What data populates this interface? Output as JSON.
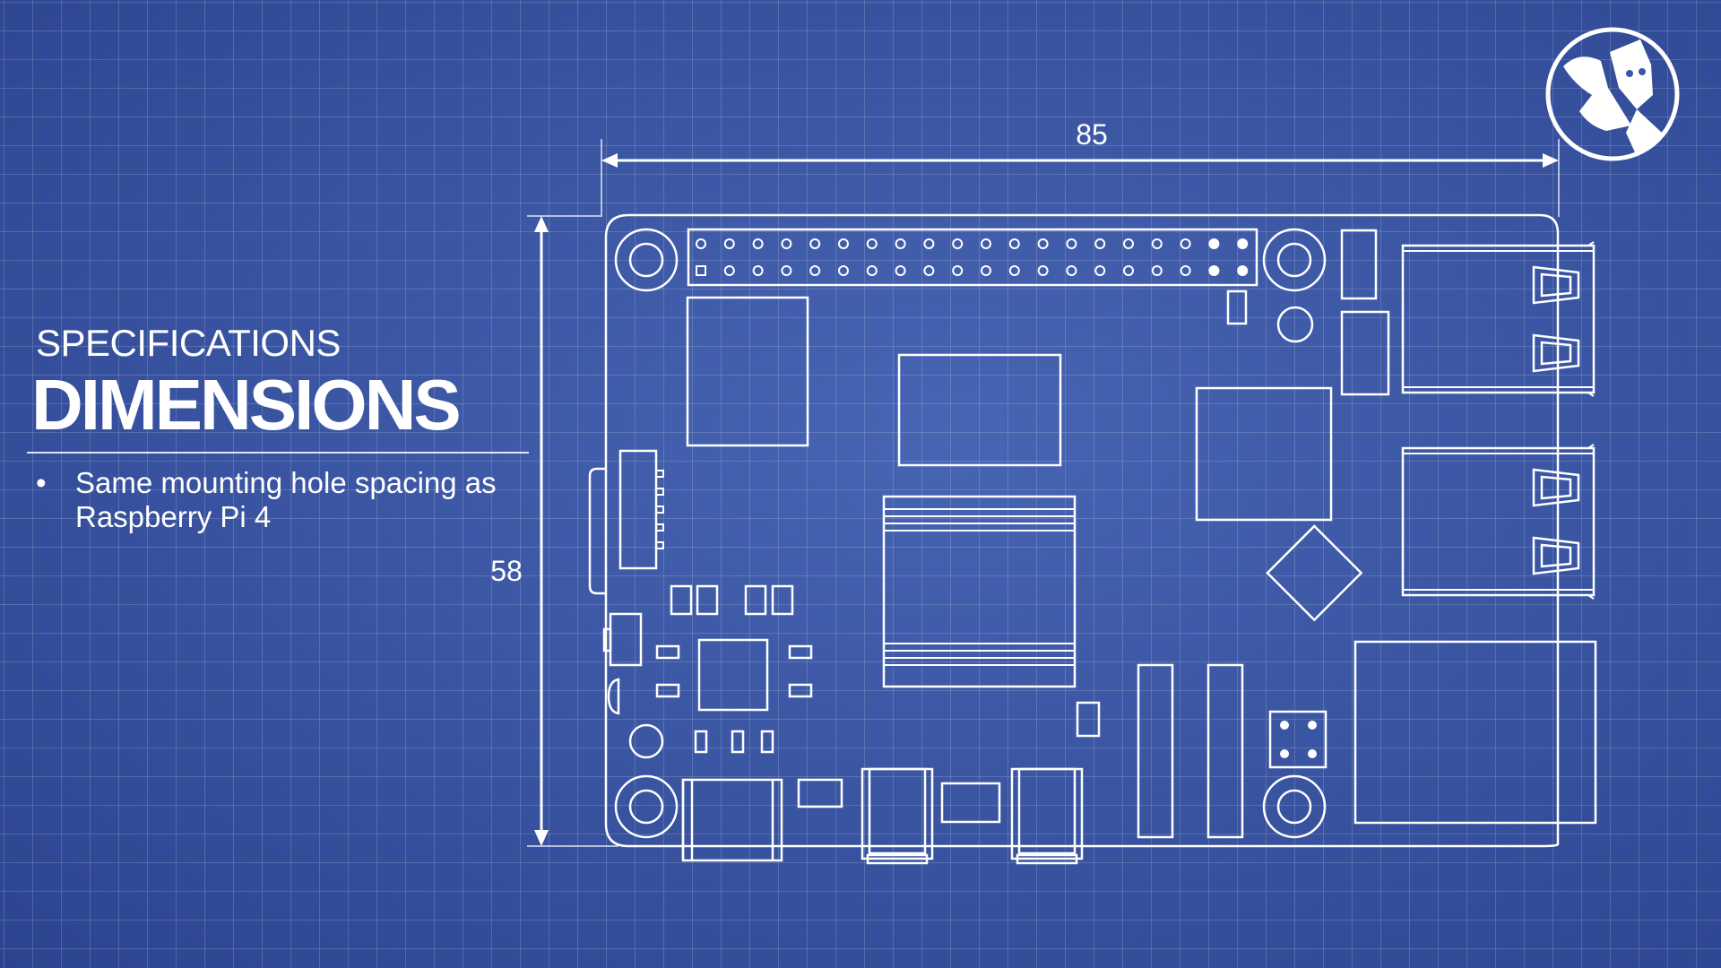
{
  "slide": {
    "section_label": "SPECIFICATIONS",
    "title": "DIMENSIONS",
    "bullets": [
      "Same mounting hole spacing as Raspberry Pi 4"
    ]
  },
  "diagram": {
    "width_label": "85",
    "height_label": "58"
  },
  "logo": {
    "icon": "channel-logo-icon"
  },
  "colors": {
    "background": "#3b56a3",
    "grid": "#6f86c6",
    "lines": "#ffffff"
  }
}
